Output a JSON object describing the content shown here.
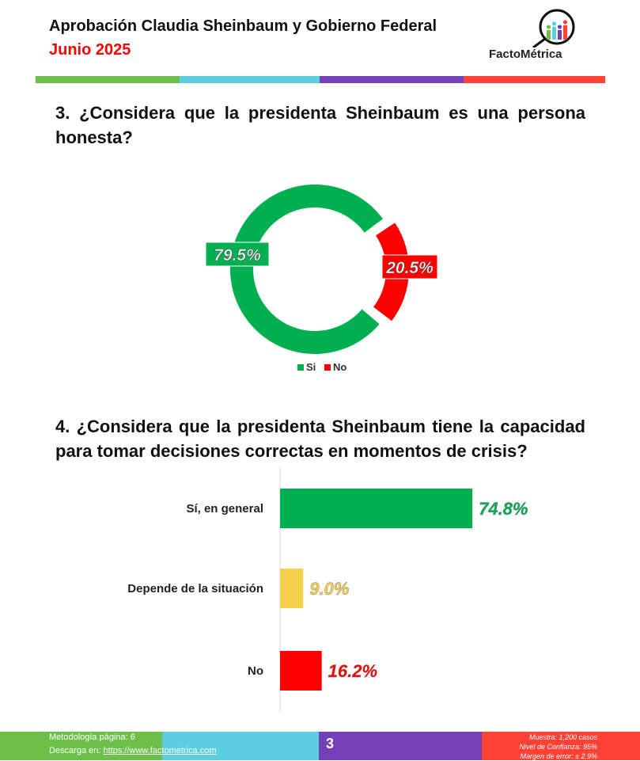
{
  "header": {
    "title": "Aprobación Claudia Sheinbaum y Gobierno Federal",
    "subtitle": "Junio 2025",
    "logo": "FactoMétrica",
    "stripe_colors": [
      "#6cc04a",
      "#5bcfe0",
      "#7340b8",
      "#ff4136"
    ]
  },
  "questions": {
    "q3": "3. ¿Considera que la presidenta Sheinbaum es una persona honesta?",
    "q4": "4. ¿Considera que la presidenta Sheinbaum tiene la capacidad para tomar decisiones correctas en momentos de crisis?"
  },
  "chart_data": [
    {
      "type": "pie",
      "donut": true,
      "categories": [
        "Si",
        "No"
      ],
      "values": [
        79.5,
        20.5
      ],
      "labels": [
        "79.5%",
        "20.5%"
      ],
      "colors": [
        "#00b050",
        "#ff0000"
      ],
      "legend": "bottom"
    },
    {
      "type": "bar",
      "orientation": "horizontal",
      "categories": [
        "Sí, en general",
        "Depende de la situación",
        "No"
      ],
      "values": [
        74.8,
        9.0,
        16.2
      ],
      "labels": [
        "74.8%",
        "9.0%",
        "16.2%"
      ],
      "colors": [
        "#00b050",
        "#f5d04a",
        "#ff0000"
      ]
    }
  ],
  "footer": {
    "method": "Metodología página: 6",
    "download_prefix": "Descarga en: ",
    "download_link": "https://www.factometrica.com",
    "page": "3",
    "sample": "Muestra:  1,200 casos",
    "confidence": "Nivel de Confianza: 95%",
    "error": "Margen de error: ± 2.9%"
  }
}
